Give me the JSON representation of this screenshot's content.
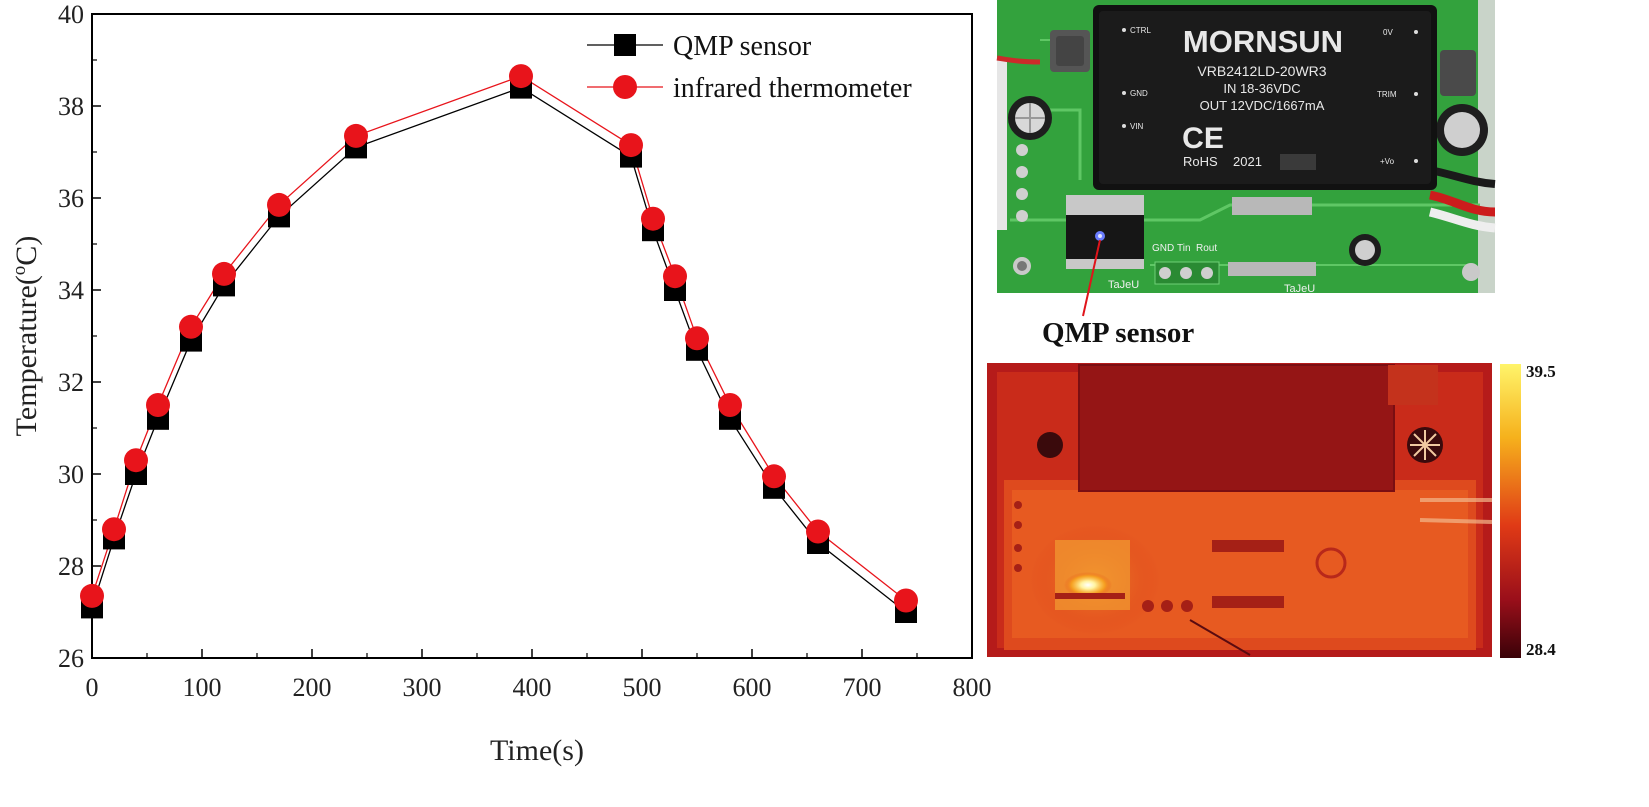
{
  "chart_data": {
    "type": "line",
    "title": "",
    "xlabel": "Time(s)",
    "ylabel_main": "Temperature(",
    "ylabel_sup": "o",
    "ylabel_tail": "C)",
    "xlim": [
      0,
      800
    ],
    "ylim": [
      26,
      40
    ],
    "x_ticks": [
      0,
      100,
      200,
      300,
      400,
      500,
      600,
      700,
      800
    ],
    "y_ticks": [
      26,
      28,
      30,
      32,
      34,
      36,
      38,
      40
    ],
    "grid": false,
    "legend_position": "top-right",
    "x": [
      0,
      20,
      40,
      60,
      90,
      120,
      170,
      240,
      390,
      490,
      510,
      530,
      550,
      580,
      620,
      660,
      740
    ],
    "series": [
      {
        "name": "QMP sensor",
        "marker": "square",
        "color": "#000000",
        "values": [
          27.1,
          28.6,
          30.0,
          31.2,
          32.9,
          34.1,
          35.6,
          37.1,
          38.4,
          36.9,
          35.3,
          34.0,
          32.7,
          31.2,
          29.7,
          28.5,
          27.0
        ]
      },
      {
        "name": "infrared thermometer",
        "marker": "circle",
        "color": "#e8141b",
        "values": [
          27.35,
          28.8,
          30.3,
          31.5,
          33.2,
          34.35,
          35.85,
          37.35,
          38.65,
          37.15,
          35.55,
          34.3,
          32.95,
          31.5,
          29.95,
          28.75,
          27.25
        ]
      }
    ]
  },
  "photo": {
    "label": "QMP sensor",
    "module_brand": "MORNSUN",
    "module_model": "VRB2412LD-20WR3",
    "module_input": "IN 18-36VDC",
    "module_output": "OUT 12VDC/1667mA",
    "module_mark": "CE",
    "module_rohs": "RoHS",
    "module_year": "2021",
    "pin_ctrl": "CTRL",
    "pin_gnd": "GND",
    "pin_vin": "VIN",
    "pin_0v": "0V",
    "pin_trim": "TRIM",
    "pin_vo": "+Vo",
    "pcb_label_1": "GND",
    "pcb_label_2": "Tin",
    "pcb_label_3": "Rout",
    "pcb_logo_1": "TaJeU",
    "pcb_logo_2": "TaJeU"
  },
  "thermal": {
    "max": "39.5",
    "min": "28.4"
  }
}
